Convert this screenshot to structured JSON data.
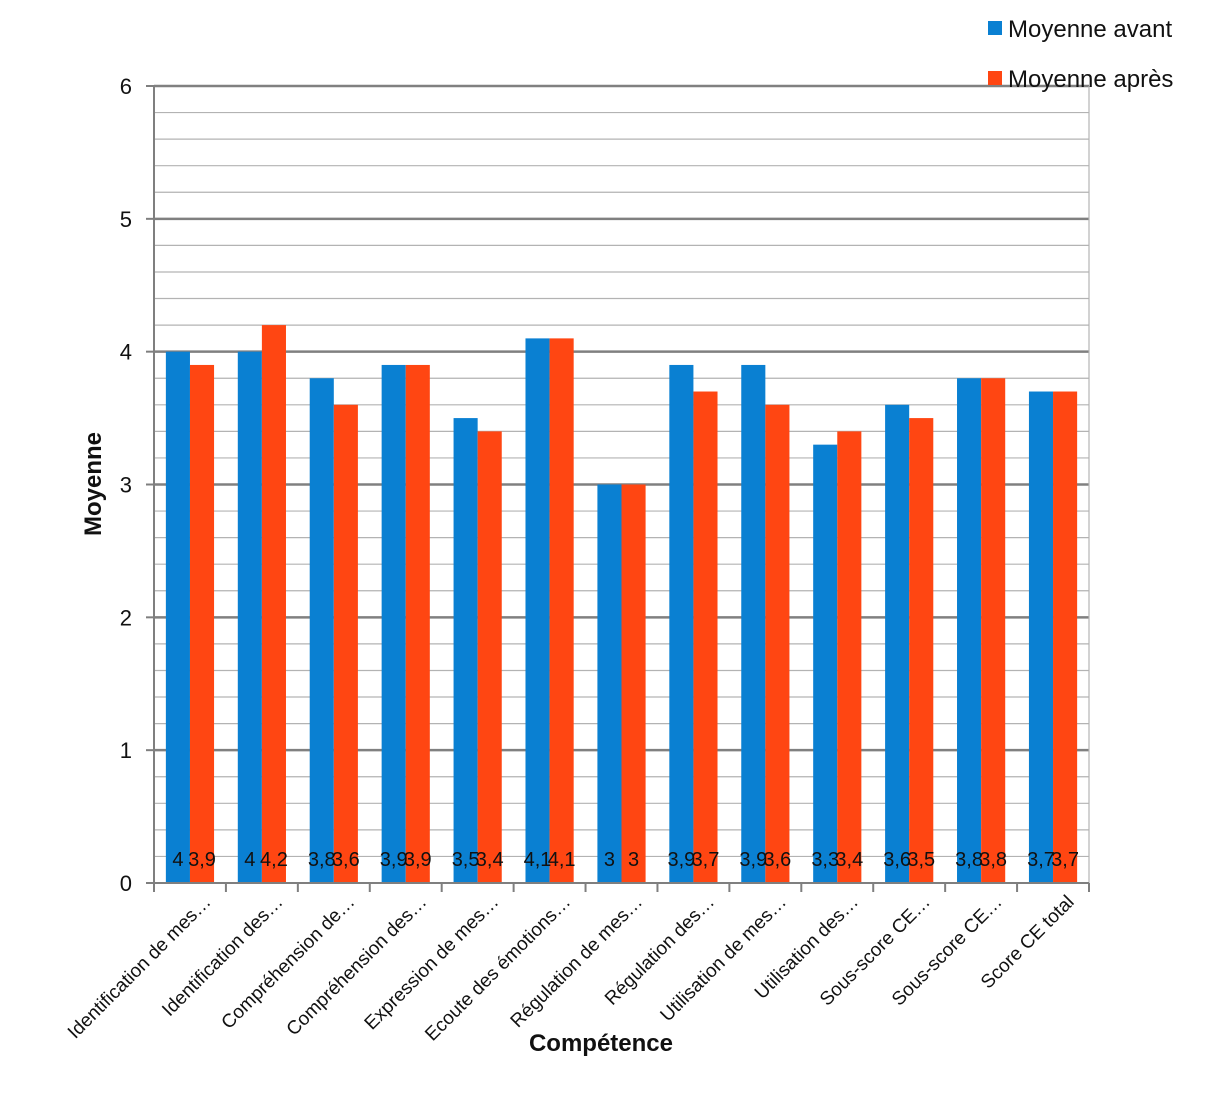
{
  "chart_data": {
    "type": "bar",
    "title": "",
    "xlabel": "Compétence",
    "ylabel": "Moyenne",
    "ylim": [
      0,
      6
    ],
    "y_ticks": [
      "0",
      "1",
      "2",
      "3",
      "4",
      "5",
      "6"
    ],
    "grid": true,
    "legend_position": "top-right",
    "categories": [
      "Identification de mes…",
      "Identification des…",
      "Compréhension de…",
      "Compréhension des…",
      "Expression de mes…",
      "Ecoute des émotions…",
      "Régulation de mes…",
      "Régulation des…",
      "Utilisation de mes…",
      "Utilisation des…",
      "Sous-score CE…",
      "Sous-score CE…",
      "Score CE total"
    ],
    "series": [
      {
        "name": "Moyenne avant",
        "color": "#0a80d2",
        "values": [
          4,
          4,
          3.8,
          3.9,
          3.5,
          4.1,
          3,
          3.9,
          3.9,
          3.3,
          3.6,
          3.8,
          3.7
        ],
        "labels": [
          "4",
          "4",
          "3,8",
          "3,9",
          "3,5",
          "4,1",
          "3",
          "3,9",
          "3,9",
          "3,3",
          "3,6",
          "3,8",
          "3,7"
        ]
      },
      {
        "name": "Moyenne après",
        "color": "#ff4612",
        "values": [
          3.9,
          4.2,
          3.6,
          3.9,
          3.4,
          4.1,
          3,
          3.7,
          3.6,
          3.4,
          3.5,
          3.8,
          3.7
        ],
        "labels": [
          "3,9",
          "4,2",
          "3,6",
          "3,9",
          "3,4",
          "4,1",
          "3",
          "3,7",
          "3,6",
          "3,4",
          "3,5",
          "3,8",
          "3,7"
        ]
      }
    ]
  }
}
